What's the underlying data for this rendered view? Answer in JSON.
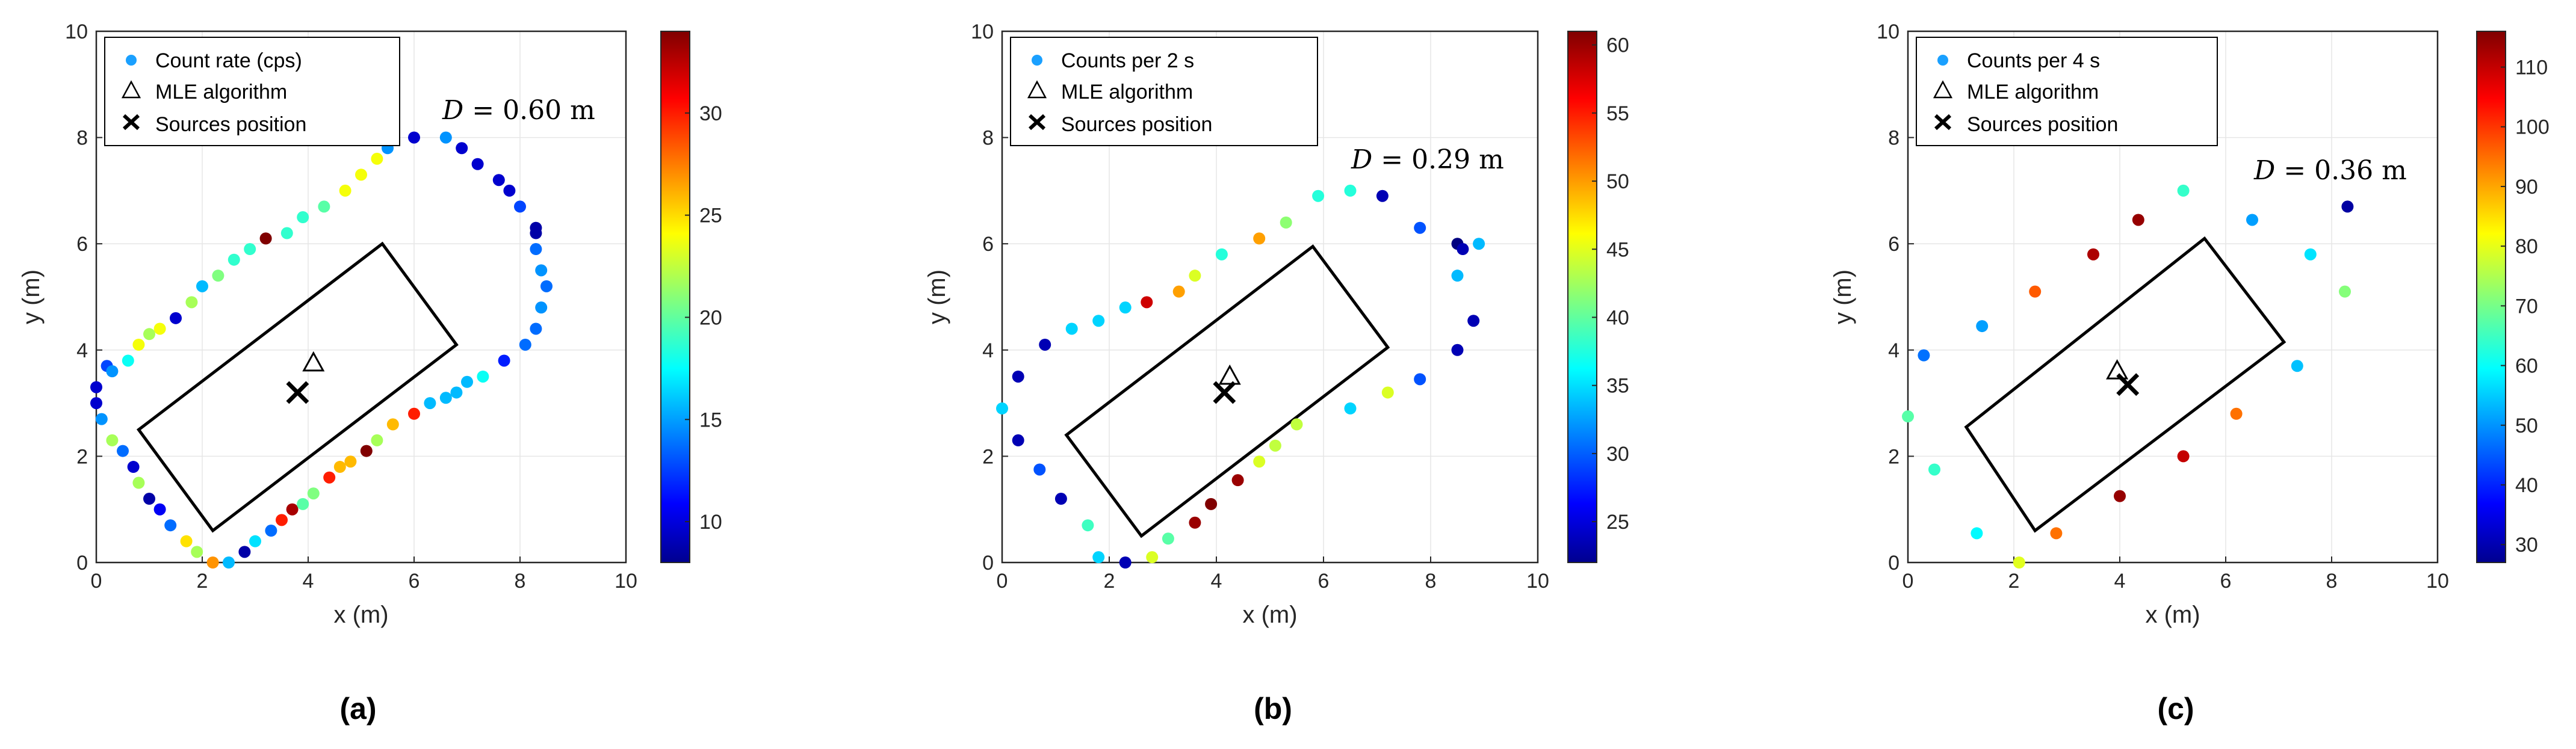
{
  "chart_data": [
    {
      "type": "scatter",
      "panel_label": "(a)",
      "xlabel": "x (m)",
      "ylabel": "y (m)",
      "xlim": [
        0,
        10
      ],
      "ylim": [
        0,
        10
      ],
      "xticks": [
        0,
        2,
        4,
        6,
        8,
        10
      ],
      "yticks": [
        0,
        2,
        4,
        6,
        8,
        10
      ],
      "grid": true,
      "legend": {
        "position": "top-left",
        "entries": [
          "Count rate (cps)",
          "MLE algorithm",
          "Sources position"
        ]
      },
      "distance_label": {
        "var": "D",
        "eq": " =  ",
        "value": "0.60 m"
      },
      "colorbar": {
        "min": 8,
        "max": 34,
        "ticks": [
          10,
          15,
          20,
          25,
          30
        ]
      },
      "points": [
        [
          0.2,
          3.7,
          13
        ],
        [
          0.0,
          3.3,
          10
        ],
        [
          0.0,
          3.0,
          10
        ],
        [
          0.1,
          2.7,
          15
        ],
        [
          0.3,
          2.3,
          22
        ],
        [
          0.5,
          2.1,
          14
        ],
        [
          0.7,
          1.8,
          10
        ],
        [
          0.8,
          1.5,
          22
        ],
        [
          1.0,
          1.2,
          9
        ],
        [
          1.2,
          1.0,
          11
        ],
        [
          1.4,
          0.7,
          14
        ],
        [
          1.7,
          0.4,
          25
        ],
        [
          1.9,
          0.2,
          22
        ],
        [
          2.2,
          0.0,
          27
        ],
        [
          2.5,
          0.0,
          16
        ],
        [
          2.8,
          0.2,
          9
        ],
        [
          3.0,
          0.4,
          17
        ],
        [
          3.3,
          0.6,
          14
        ],
        [
          3.5,
          0.8,
          30
        ],
        [
          3.7,
          1.0,
          33
        ],
        [
          3.9,
          1.1,
          20
        ],
        [
          4.1,
          1.3,
          21
        ],
        [
          4.4,
          1.6,
          30
        ],
        [
          4.6,
          1.8,
          26
        ],
        [
          4.8,
          1.9,
          26
        ],
        [
          5.1,
          2.1,
          34
        ],
        [
          5.3,
          2.3,
          22
        ],
        [
          5.6,
          2.6,
          26
        ],
        [
          6.0,
          2.8,
          30
        ],
        [
          6.3,
          3.0,
          16
        ],
        [
          6.6,
          3.1,
          16
        ],
        [
          6.8,
          3.2,
          16
        ],
        [
          7.0,
          3.4,
          16
        ],
        [
          7.3,
          3.5,
          18
        ],
        [
          7.7,
          3.8,
          12
        ],
        [
          8.1,
          4.1,
          14
        ],
        [
          8.3,
          4.4,
          14
        ],
        [
          8.4,
          4.8,
          15
        ],
        [
          8.5,
          5.2,
          14
        ],
        [
          8.4,
          5.5,
          15
        ],
        [
          8.3,
          5.9,
          14
        ],
        [
          8.3,
          6.2,
          9
        ],
        [
          8.3,
          6.3,
          9
        ],
        [
          8.0,
          6.7,
          13
        ],
        [
          7.8,
          7.0,
          10
        ],
        [
          7.6,
          7.2,
          10
        ],
        [
          7.2,
          7.5,
          10
        ],
        [
          6.9,
          7.8,
          10
        ],
        [
          6.6,
          8.0,
          15
        ],
        [
          6.0,
          8.0,
          10
        ],
        [
          5.5,
          7.8,
          15
        ],
        [
          5.3,
          7.6,
          24
        ],
        [
          5.0,
          7.3,
          24
        ],
        [
          4.7,
          7.0,
          24
        ],
        [
          4.3,
          6.7,
          20
        ],
        [
          3.9,
          6.5,
          19
        ],
        [
          3.6,
          6.2,
          19
        ],
        [
          3.2,
          6.1,
          34
        ],
        [
          2.9,
          5.9,
          19
        ],
        [
          2.6,
          5.7,
          19
        ],
        [
          2.3,
          5.4,
          21
        ],
        [
          2.0,
          5.2,
          16
        ],
        [
          1.8,
          4.9,
          22
        ],
        [
          1.5,
          4.6,
          10
        ],
        [
          1.2,
          4.4,
          24
        ],
        [
          1.0,
          4.3,
          22
        ],
        [
          0.8,
          4.1,
          24
        ],
        [
          0.6,
          3.8,
          18
        ],
        [
          0.3,
          3.6,
          15
        ]
      ],
      "mle": [
        4.1,
        3.75
      ],
      "source": [
        3.8,
        3.2
      ],
      "rectangle": [
        [
          0.8,
          2.5
        ],
        [
          5.4,
          6.0
        ],
        [
          6.8,
          4.1
        ],
        [
          2.2,
          0.6
        ]
      ]
    },
    {
      "type": "scatter",
      "panel_label": "(b)",
      "xlabel": "x (m)",
      "ylabel": "y (m)",
      "xlim": [
        0,
        10
      ],
      "ylim": [
        0,
        10
      ],
      "xticks": [
        0,
        2,
        4,
        6,
        8,
        10
      ],
      "yticks": [
        0,
        2,
        4,
        6,
        8,
        10
      ],
      "grid": true,
      "legend": {
        "position": "top-left",
        "entries": [
          "Counts per 2 s",
          "MLE algorithm",
          "Sources position"
        ]
      },
      "distance_label": {
        "var": "D",
        "eq": " =  ",
        "value": "0.29 m"
      },
      "colorbar": {
        "min": 22,
        "max": 61,
        "ticks": [
          25,
          30,
          35,
          40,
          45,
          50,
          55,
          60
        ]
      },
      "points": [
        [
          0.0,
          2.9,
          35
        ],
        [
          0.3,
          3.5,
          24
        ],
        [
          0.3,
          2.3,
          24
        ],
        [
          0.7,
          1.75,
          30
        ],
        [
          0.8,
          4.1,
          24
        ],
        [
          1.1,
          1.2,
          24
        ],
        [
          1.3,
          4.4,
          35
        ],
        [
          1.6,
          0.7,
          39
        ],
        [
          1.8,
          4.55,
          35
        ],
        [
          1.8,
          0.1,
          35
        ],
        [
          2.3,
          4.8,
          35
        ],
        [
          2.3,
          0.0,
          24
        ],
        [
          2.7,
          4.9,
          58
        ],
        [
          2.8,
          0.1,
          45
        ],
        [
          3.1,
          0.45,
          40
        ],
        [
          3.3,
          5.1,
          50
        ],
        [
          3.6,
          5.4,
          45
        ],
        [
          3.6,
          0.75,
          60
        ],
        [
          3.9,
          1.1,
          61
        ],
        [
          4.4,
          1.55,
          60
        ],
        [
          4.1,
          5.8,
          38
        ],
        [
          4.8,
          6.1,
          50
        ],
        [
          4.8,
          1.9,
          45
        ],
        [
          5.1,
          2.2,
          44
        ],
        [
          5.3,
          6.4,
          42
        ],
        [
          5.5,
          2.6,
          44
        ],
        [
          5.9,
          6.9,
          38
        ],
        [
          6.5,
          7.0,
          38
        ],
        [
          6.5,
          2.9,
          35
        ],
        [
          7.1,
          6.9,
          24
        ],
        [
          7.2,
          3.2,
          45
        ],
        [
          7.8,
          6.3,
          30
        ],
        [
          7.8,
          3.45,
          30
        ],
        [
          8.5,
          6.0,
          22
        ],
        [
          8.5,
          5.4,
          34
        ],
        [
          8.5,
          4.0,
          24
        ],
        [
          8.9,
          6.0,
          34
        ],
        [
          8.8,
          4.55,
          24
        ],
        [
          8.6,
          5.9,
          24
        ]
      ],
      "mle": [
        4.25,
        3.5
      ],
      "source": [
        4.15,
        3.2
      ],
      "rectangle": [
        [
          1.2,
          2.4
        ],
        [
          5.8,
          5.95
        ],
        [
          7.2,
          4.05
        ],
        [
          2.6,
          0.5
        ]
      ]
    },
    {
      "type": "scatter",
      "panel_label": "(c)",
      "xlabel": "x (m)",
      "ylabel": "y (m)",
      "xlim": [
        0,
        10
      ],
      "ylim": [
        0,
        10
      ],
      "xticks": [
        0,
        2,
        4,
        6,
        8,
        10
      ],
      "yticks": [
        0,
        2,
        4,
        6,
        8,
        10
      ],
      "grid": true,
      "legend": {
        "position": "top-left",
        "entries": [
          "Counts per 4 s",
          "MLE algorithm",
          "Sources position"
        ]
      },
      "distance_label": {
        "var": "D",
        "eq": " =  ",
        "value": "0.36 m"
      },
      "colorbar": {
        "min": 27,
        "max": 116,
        "ticks": [
          30,
          40,
          50,
          60,
          70,
          80,
          90,
          100,
          110
        ]
      },
      "points": [
        [
          0.0,
          2.75,
          68
        ],
        [
          0.3,
          3.9,
          48
        ],
        [
          0.5,
          1.75,
          65
        ],
        [
          1.3,
          0.55,
          60
        ],
        [
          1.4,
          4.45,
          52
        ],
        [
          2.1,
          0.0,
          80
        ],
        [
          2.4,
          5.1,
          97
        ],
        [
          2.8,
          0.55,
          95
        ],
        [
          3.5,
          5.8,
          112
        ],
        [
          4.0,
          1.25,
          114
        ],
        [
          4.35,
          6.45,
          114
        ],
        [
          5.2,
          2.0,
          110
        ],
        [
          5.2,
          7.0,
          65
        ],
        [
          6.2,
          2.8,
          95
        ],
        [
          6.5,
          6.45,
          52
        ],
        [
          7.35,
          3.7,
          55
        ],
        [
          7.6,
          5.8,
          58
        ],
        [
          8.25,
          5.1,
          72
        ],
        [
          8.3,
          6.7,
          30
        ]
      ],
      "mle": [
        3.95,
        3.6
      ],
      "source": [
        4.15,
        3.35
      ],
      "rectangle": [
        [
          1.1,
          2.55
        ],
        [
          5.6,
          6.1
        ],
        [
          7.1,
          4.15
        ],
        [
          2.4,
          0.6
        ]
      ]
    }
  ]
}
